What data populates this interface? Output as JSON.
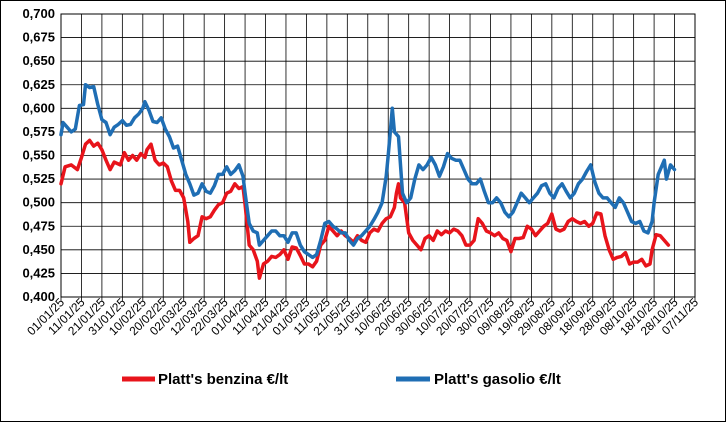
{
  "chart_data": {
    "type": "line",
    "title": "",
    "xlabel": "",
    "ylabel": "",
    "ylim": [
      0.4,
      0.7
    ],
    "y_ticks": [
      "0,400",
      "0,425",
      "0,450",
      "0,475",
      "0,500",
      "0,525",
      "0,550",
      "0,575",
      "0,600",
      "0,625",
      "0,650",
      "0,675",
      "0,700"
    ],
    "x_tick_labels": [
      "01/01/25",
      "11/01/25",
      "21/01/25",
      "31/01/25",
      "10/02/25",
      "20/02/25",
      "02/03/25",
      "12/03/25",
      "22/03/25",
      "01/04/25",
      "11/04/25",
      "21/04/25",
      "01/05/25",
      "11/05/25",
      "21/05/25",
      "31/05/25",
      "10/06/25",
      "20/06/25",
      "30/06/25",
      "10/07/25",
      "20/07/25",
      "30/07/25",
      "09/08/25",
      "19/08/25",
      "29/08/25",
      "08/09/25",
      "18/09/25",
      "28/09/25",
      "08/10/25",
      "18/10/25",
      "28/10/25",
      "07/11/25"
    ],
    "x_day_range": [
      0,
      310
    ],
    "grid": true,
    "legend_position": "bottom",
    "series": [
      {
        "name": "Platt's benzina €/lt",
        "color": "#e8141b",
        "points": [
          [
            0,
            0.52
          ],
          [
            2,
            0.538
          ],
          [
            5,
            0.54
          ],
          [
            8,
            0.535
          ],
          [
            10,
            0.548
          ],
          [
            12,
            0.562
          ],
          [
            14,
            0.566
          ],
          [
            16,
            0.56
          ],
          [
            18,
            0.563
          ],
          [
            20,
            0.556
          ],
          [
            22,
            0.545
          ],
          [
            24,
            0.535
          ],
          [
            26,
            0.543
          ],
          [
            29,
            0.54
          ],
          [
            31,
            0.553
          ],
          [
            33,
            0.545
          ],
          [
            35,
            0.55
          ],
          [
            37,
            0.545
          ],
          [
            39,
            0.552
          ],
          [
            41,
            0.548
          ],
          [
            42,
            0.556
          ],
          [
            44,
            0.562
          ],
          [
            46,
            0.545
          ],
          [
            48,
            0.54
          ],
          [
            50,
            0.542
          ],
          [
            52,
            0.538
          ],
          [
            54,
            0.523
          ],
          [
            56,
            0.513
          ],
          [
            58,
            0.513
          ],
          [
            60,
            0.505
          ],
          [
            62,
            0.48
          ],
          [
            63,
            0.458
          ],
          [
            65,
            0.462
          ],
          [
            67,
            0.465
          ],
          [
            69,
            0.485
          ],
          [
            71,
            0.483
          ],
          [
            73,
            0.485
          ],
          [
            75,
            0.492
          ],
          [
            77,
            0.498
          ],
          [
            79,
            0.5
          ],
          [
            81,
            0.51
          ],
          [
            83,
            0.512
          ],
          [
            85,
            0.52
          ],
          [
            87,
            0.515
          ],
          [
            89,
            0.517
          ],
          [
            90,
            0.498
          ],
          [
            92,
            0.455
          ],
          [
            94,
            0.45
          ],
          [
            96,
            0.438
          ],
          [
            97,
            0.42
          ],
          [
            99,
            0.435
          ],
          [
            101,
            0.438
          ],
          [
            103,
            0.443
          ],
          [
            105,
            0.442
          ],
          [
            107,
            0.445
          ],
          [
            109,
            0.45
          ],
          [
            111,
            0.44
          ],
          [
            113,
            0.453
          ],
          [
            115,
            0.452
          ],
          [
            117,
            0.444
          ],
          [
            119,
            0.435
          ],
          [
            121,
            0.435
          ],
          [
            123,
            0.432
          ],
          [
            125,
            0.438
          ],
          [
            127,
            0.455
          ],
          [
            129,
            0.46
          ],
          [
            131,
            0.475
          ],
          [
            133,
            0.47
          ],
          [
            135,
            0.465
          ],
          [
            137,
            0.47
          ],
          [
            139,
            0.465
          ],
          [
            141,
            0.462
          ],
          [
            143,
            0.458
          ],
          [
            145,
            0.465
          ],
          [
            147,
            0.46
          ],
          [
            149,
            0.458
          ],
          [
            151,
            0.468
          ],
          [
            153,
            0.472
          ],
          [
            155,
            0.47
          ],
          [
            157,
            0.478
          ],
          [
            159,
            0.483
          ],
          [
            161,
            0.485
          ],
          [
            163,
            0.495
          ],
          [
            164,
            0.51
          ],
          [
            165,
            0.52
          ],
          [
            166,
            0.505
          ],
          [
            168,
            0.5
          ],
          [
            170,
            0.468
          ],
          [
            172,
            0.46
          ],
          [
            174,
            0.455
          ],
          [
            176,
            0.45
          ],
          [
            178,
            0.462
          ],
          [
            180,
            0.465
          ],
          [
            182,
            0.46
          ],
          [
            184,
            0.47
          ],
          [
            186,
            0.466
          ],
          [
            188,
            0.47
          ],
          [
            190,
            0.468
          ],
          [
            192,
            0.472
          ],
          [
            194,
            0.47
          ],
          [
            196,
            0.465
          ],
          [
            198,
            0.455
          ],
          [
            200,
            0.455
          ],
          [
            202,
            0.46
          ],
          [
            204,
            0.483
          ],
          [
            206,
            0.478
          ],
          [
            208,
            0.47
          ],
          [
            210,
            0.468
          ],
          [
            212,
            0.465
          ],
          [
            214,
            0.468
          ],
          [
            216,
            0.462
          ],
          [
            218,
            0.46
          ],
          [
            220,
            0.448
          ],
          [
            222,
            0.462
          ],
          [
            224,
            0.462
          ],
          [
            226,
            0.463
          ],
          [
            228,
            0.475
          ],
          [
            230,
            0.472
          ],
          [
            232,
            0.465
          ],
          [
            234,
            0.47
          ],
          [
            236,
            0.475
          ],
          [
            238,
            0.478
          ],
          [
            240,
            0.488
          ],
          [
            242,
            0.472
          ],
          [
            244,
            0.47
          ],
          [
            246,
            0.472
          ],
          [
            248,
            0.48
          ],
          [
            250,
            0.483
          ],
          [
            252,
            0.48
          ],
          [
            254,
            0.478
          ],
          [
            256,
            0.48
          ],
          [
            258,
            0.475
          ],
          [
            260,
            0.478
          ],
          [
            262,
            0.489
          ],
          [
            264,
            0.488
          ],
          [
            266,
            0.465
          ],
          [
            268,
            0.45
          ],
          [
            270,
            0.44
          ],
          [
            272,
            0.442
          ],
          [
            274,
            0.443
          ],
          [
            276,
            0.447
          ],
          [
            278,
            0.435
          ],
          [
            280,
            0.437
          ],
          [
            282,
            0.437
          ],
          [
            284,
            0.44
          ],
          [
            286,
            0.433
          ],
          [
            288,
            0.435
          ],
          [
            289,
            0.45
          ],
          [
            291,
            0.466
          ],
          [
            293,
            0.465
          ],
          [
            295,
            0.46
          ],
          [
            297,
            0.455
          ]
        ]
      },
      {
        "name": "Platt's gasolio €/lt",
        "color": "#1f6eb4",
        "points": [
          [
            0,
            0.572
          ],
          [
            1,
            0.585
          ],
          [
            3,
            0.58
          ],
          [
            5,
            0.575
          ],
          [
            7,
            0.578
          ],
          [
            9,
            0.603
          ],
          [
            11,
            0.604
          ],
          [
            12,
            0.625
          ],
          [
            14,
            0.622
          ],
          [
            16,
            0.623
          ],
          [
            18,
            0.604
          ],
          [
            20,
            0.588
          ],
          [
            22,
            0.585
          ],
          [
            24,
            0.572
          ],
          [
            26,
            0.58
          ],
          [
            28,
            0.583
          ],
          [
            30,
            0.587
          ],
          [
            32,
            0.582
          ],
          [
            34,
            0.583
          ],
          [
            36,
            0.59
          ],
          [
            38,
            0.594
          ],
          [
            40,
            0.6
          ],
          [
            41,
            0.607
          ],
          [
            43,
            0.598
          ],
          [
            45,
            0.586
          ],
          [
            47,
            0.585
          ],
          [
            49,
            0.59
          ],
          [
            51,
            0.578
          ],
          [
            53,
            0.57
          ],
          [
            55,
            0.558
          ],
          [
            57,
            0.56
          ],
          [
            59,
            0.545
          ],
          [
            61,
            0.53
          ],
          [
            63,
            0.52
          ],
          [
            65,
            0.508
          ],
          [
            67,
            0.51
          ],
          [
            69,
            0.52
          ],
          [
            71,
            0.512
          ],
          [
            73,
            0.51
          ],
          [
            75,
            0.518
          ],
          [
            77,
            0.53
          ],
          [
            79,
            0.53
          ],
          [
            81,
            0.538
          ],
          [
            83,
            0.53
          ],
          [
            85,
            0.534
          ],
          [
            87,
            0.54
          ],
          [
            89,
            0.528
          ],
          [
            90,
            0.51
          ],
          [
            92,
            0.478
          ],
          [
            94,
            0.47
          ],
          [
            96,
            0.468
          ],
          [
            97,
            0.455
          ],
          [
            99,
            0.46
          ],
          [
            101,
            0.465
          ],
          [
            103,
            0.47
          ],
          [
            105,
            0.47
          ],
          [
            107,
            0.465
          ],
          [
            109,
            0.465
          ],
          [
            111,
            0.458
          ],
          [
            113,
            0.468
          ],
          [
            115,
            0.468
          ],
          [
            117,
            0.455
          ],
          [
            119,
            0.448
          ],
          [
            121,
            0.445
          ],
          [
            123,
            0.442
          ],
          [
            125,
            0.445
          ],
          [
            127,
            0.46
          ],
          [
            129,
            0.478
          ],
          [
            131,
            0.48
          ],
          [
            133,
            0.475
          ],
          [
            135,
            0.472
          ],
          [
            137,
            0.468
          ],
          [
            139,
            0.468
          ],
          [
            141,
            0.46
          ],
          [
            143,
            0.455
          ],
          [
            145,
            0.462
          ],
          [
            147,
            0.465
          ],
          [
            149,
            0.47
          ],
          [
            151,
            0.475
          ],
          [
            153,
            0.482
          ],
          [
            155,
            0.49
          ],
          [
            157,
            0.5
          ],
          [
            159,
            0.528
          ],
          [
            160,
            0.55
          ],
          [
            161,
            0.575
          ],
          [
            162,
            0.6
          ],
          [
            163,
            0.575
          ],
          [
            165,
            0.57
          ],
          [
            167,
            0.51
          ],
          [
            169,
            0.5
          ],
          [
            171,
            0.505
          ],
          [
            173,
            0.525
          ],
          [
            175,
            0.54
          ],
          [
            177,
            0.535
          ],
          [
            179,
            0.54
          ],
          [
            181,
            0.548
          ],
          [
            183,
            0.54
          ],
          [
            185,
            0.528
          ],
          [
            187,
            0.538
          ],
          [
            189,
            0.552
          ],
          [
            191,
            0.547
          ],
          [
            193,
            0.545
          ],
          [
            195,
            0.545
          ],
          [
            197,
            0.535
          ],
          [
            199,
            0.525
          ],
          [
            201,
            0.52
          ],
          [
            203,
            0.52
          ],
          [
            205,
            0.525
          ],
          [
            207,
            0.512
          ],
          [
            209,
            0.5
          ],
          [
            211,
            0.5
          ],
          [
            213,
            0.505
          ],
          [
            215,
            0.5
          ],
          [
            217,
            0.49
          ],
          [
            219,
            0.485
          ],
          [
            221,
            0.49
          ],
          [
            223,
            0.5
          ],
          [
            225,
            0.51
          ],
          [
            227,
            0.505
          ],
          [
            229,
            0.5
          ],
          [
            231,
            0.505
          ],
          [
            233,
            0.51
          ],
          [
            235,
            0.518
          ],
          [
            237,
            0.52
          ],
          [
            239,
            0.51
          ],
          [
            241,
            0.505
          ],
          [
            243,
            0.515
          ],
          [
            245,
            0.52
          ],
          [
            247,
            0.512
          ],
          [
            249,
            0.505
          ],
          [
            251,
            0.51
          ],
          [
            253,
            0.52
          ],
          [
            255,
            0.525
          ],
          [
            257,
            0.533
          ],
          [
            259,
            0.54
          ],
          [
            261,
            0.522
          ],
          [
            263,
            0.51
          ],
          [
            265,
            0.505
          ],
          [
            267,
            0.505
          ],
          [
            269,
            0.5
          ],
          [
            271,
            0.495
          ],
          [
            273,
            0.505
          ],
          [
            275,
            0.5
          ],
          [
            277,
            0.49
          ],
          [
            279,
            0.48
          ],
          [
            281,
            0.478
          ],
          [
            283,
            0.48
          ],
          [
            285,
            0.47
          ],
          [
            287,
            0.468
          ],
          [
            289,
            0.48
          ],
          [
            290,
            0.5
          ],
          [
            292,
            0.53
          ],
          [
            294,
            0.54
          ],
          [
            295,
            0.545
          ],
          [
            296,
            0.525
          ],
          [
            298,
            0.54
          ],
          [
            300,
            0.535
          ]
        ]
      }
    ]
  },
  "legend": {
    "benzina_label": "Platt's benzina €/lt",
    "gasolio_label": "Platt's gasolio €/lt"
  }
}
